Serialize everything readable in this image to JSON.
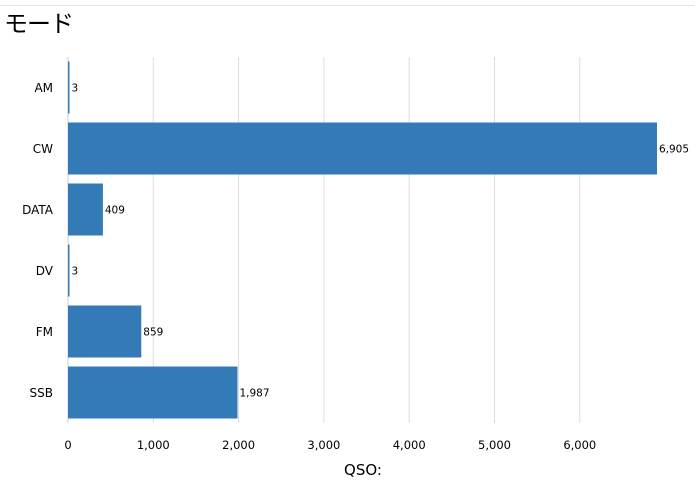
{
  "title": "モード",
  "chart_data": {
    "type": "bar",
    "orientation": "horizontal",
    "categories": [
      "AM",
      "CW",
      "DATA",
      "DV",
      "FM",
      "SSB"
    ],
    "values": [
      3,
      6905,
      409,
      3,
      859,
      1987
    ],
    "value_labels": [
      "3",
      "6,905",
      "409",
      "3",
      "859",
      "1,987"
    ],
    "xlabel": "QSO:",
    "ylabel": "",
    "xlim": [
      0,
      7000
    ],
    "x_ticks": [
      0,
      1000,
      2000,
      3000,
      4000,
      5000,
      6000
    ],
    "x_tick_labels": [
      "0",
      "1,000",
      "2,000",
      "3,000",
      "4,000",
      "5,000",
      "6,000"
    ],
    "grid": "vertical",
    "legend": "none",
    "bar_color": "#337ab7",
    "grid_color": "#dddddd"
  }
}
